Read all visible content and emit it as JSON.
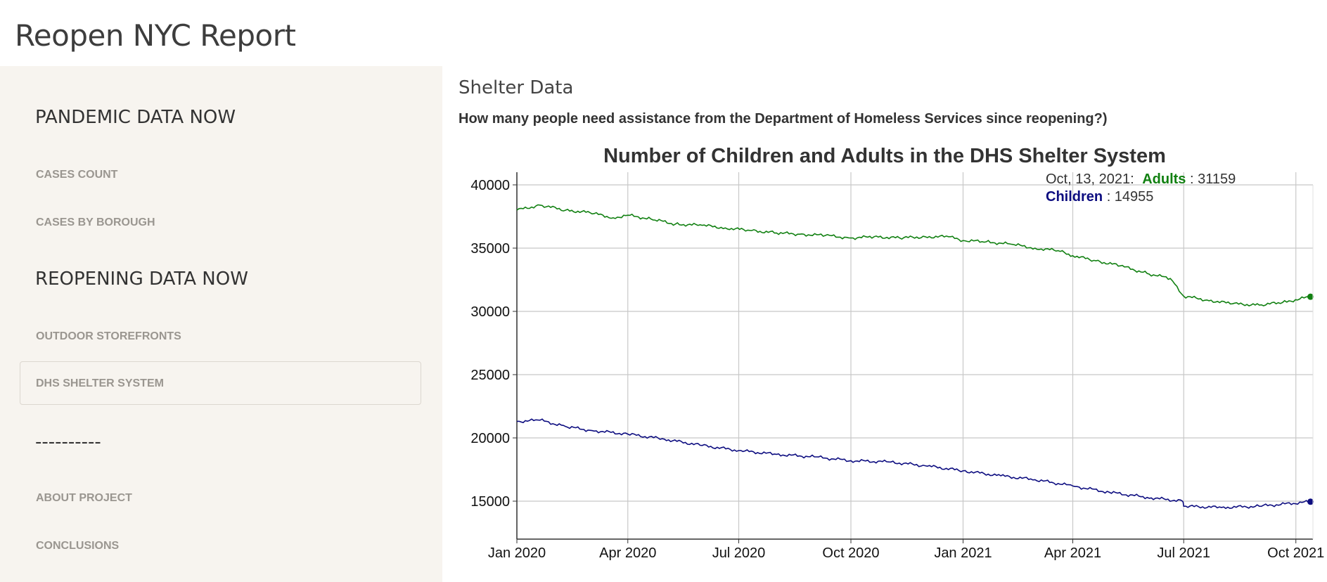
{
  "app": {
    "title": "Reopen NYC Report"
  },
  "sidebar": {
    "heading_pandemic": "PANDEMIC DATA NOW",
    "cases_count": "CASES COUNT",
    "cases_by_borough": "CASES BY BOROUGH",
    "heading_reopening": "REOPENING DATA NOW",
    "outdoor_storefronts": "OUTDOOR STOREFRONTS",
    "dhs_shelter": "DHS SHELTER SYSTEM",
    "divider": "----------",
    "about_project": "ABOUT PROJECT",
    "conclusions": "CONCLUSIONS"
  },
  "main": {
    "section_title": "Shelter Data",
    "question": "How many people need assistance from the Department of Homeless Services since reopening?)"
  },
  "tooltip": {
    "date": "Oct, 13, 2021:",
    "adults_label": "Adults",
    "adults_value": ": 31159",
    "children_label": "Children",
    "children_value": ": 14955"
  },
  "colors": {
    "adults": "#118011",
    "children": "#0d0d80"
  },
  "chart_data": {
    "type": "line",
    "title": "Number of Children and Adults in the DHS Shelter System",
    "x_tick_labels": [
      "Jan 2020",
      "Apr 2020",
      "Jul 2020",
      "Oct 2020",
      "Jan 2021",
      "Apr 2021",
      "Jul 2021",
      "Oct 2021"
    ],
    "y_ticks": [
      15000,
      20000,
      25000,
      30000,
      35000,
      40000
    ],
    "ylim": [
      12000,
      41000
    ],
    "xlim": [
      "2020-01-01",
      "2021-10-15"
    ],
    "grid": true,
    "series": [
      {
        "name": "Adults",
        "color": "#118011",
        "x": [
          "2020-01-01",
          "2020-01-20",
          "2020-02-10",
          "2020-03-01",
          "2020-03-20",
          "2020-04-01",
          "2020-04-20",
          "2020-05-10",
          "2020-06-01",
          "2020-06-20",
          "2020-07-10",
          "2020-08-01",
          "2020-08-20",
          "2020-09-10",
          "2020-10-01",
          "2020-10-20",
          "2020-11-10",
          "2020-12-01",
          "2020-12-20",
          "2021-01-01",
          "2021-01-20",
          "2021-02-10",
          "2021-03-01",
          "2021-03-20",
          "2021-04-01",
          "2021-04-20",
          "2021-05-10",
          "2021-06-01",
          "2021-06-20",
          "2021-07-01",
          "2021-07-20",
          "2021-08-10",
          "2021-09-01",
          "2021-09-20",
          "2021-10-13"
        ],
        "values": [
          38000,
          38400,
          38000,
          37800,
          37400,
          37600,
          37300,
          36900,
          36800,
          36600,
          36400,
          36200,
          36100,
          36000,
          35800,
          35900,
          35800,
          35900,
          35900,
          35600,
          35500,
          35300,
          35000,
          34800,
          34400,
          34000,
          33600,
          33000,
          32600,
          31200,
          30900,
          30600,
          30500,
          30700,
          31159
        ]
      },
      {
        "name": "Children",
        "color": "#0d0d80",
        "x": [
          "2020-01-01",
          "2020-01-20",
          "2020-02-10",
          "2020-03-01",
          "2020-04-01",
          "2020-05-01",
          "2020-06-01",
          "2020-07-01",
          "2020-08-01",
          "2020-09-01",
          "2020-10-01",
          "2020-11-01",
          "2020-12-01",
          "2021-01-01",
          "2021-02-01",
          "2021-03-01",
          "2021-04-01",
          "2021-05-01",
          "2021-06-01",
          "2021-06-30",
          "2021-07-01",
          "2021-08-01",
          "2021-09-01",
          "2021-10-13"
        ],
        "values": [
          21300,
          21400,
          20900,
          20600,
          20300,
          19900,
          19400,
          19000,
          18700,
          18500,
          18200,
          18100,
          17800,
          17400,
          17000,
          16700,
          16200,
          15700,
          15300,
          15000,
          14600,
          14500,
          14600,
          14955
        ]
      }
    ]
  }
}
